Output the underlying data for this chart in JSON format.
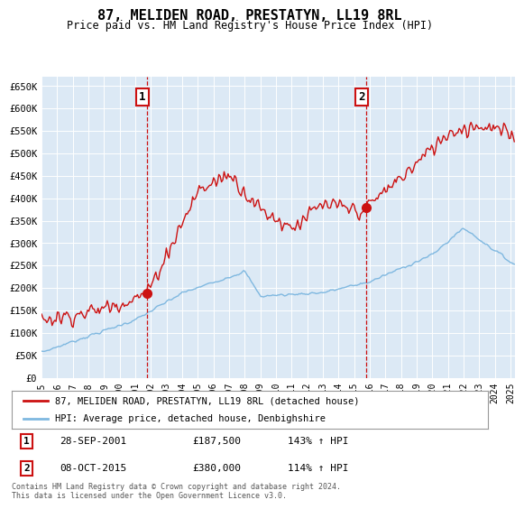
{
  "title": "87, MELIDEN ROAD, PRESTATYN, LL19 8RL",
  "subtitle": "Price paid vs. HM Land Registry's House Price Index (HPI)",
  "background_color": "#dce9f5",
  "red_line_label": "87, MELIDEN ROAD, PRESTATYN, LL19 8RL (detached house)",
  "blue_line_label": "HPI: Average price, detached house, Denbighshire",
  "footer": "Contains HM Land Registry data © Crown copyright and database right 2024.\nThis data is licensed under the Open Government Licence v3.0.",
  "annotation1": {
    "num": "1",
    "date": "28-SEP-2001",
    "price": "£187,500",
    "pct": "143% ↑ HPI"
  },
  "annotation2": {
    "num": "2",
    "date": "08-OCT-2015",
    "price": "£380,000",
    "pct": "114% ↑ HPI"
  },
  "ylim": [
    0,
    670000
  ],
  "yticks": [
    0,
    50000,
    100000,
    150000,
    200000,
    250000,
    300000,
    350000,
    400000,
    450000,
    500000,
    550000,
    600000,
    650000
  ],
  "ytick_labels": [
    "£0",
    "£50K",
    "£100K",
    "£150K",
    "£200K",
    "£250K",
    "£300K",
    "£350K",
    "£400K",
    "£450K",
    "£500K",
    "£550K",
    "£600K",
    "£650K"
  ],
  "marker1_x": 2001.75,
  "marker1_y": 187500,
  "marker2_x": 2015.77,
  "marker2_y": 380000,
  "xmin": 1995,
  "xmax": 2025.3
}
